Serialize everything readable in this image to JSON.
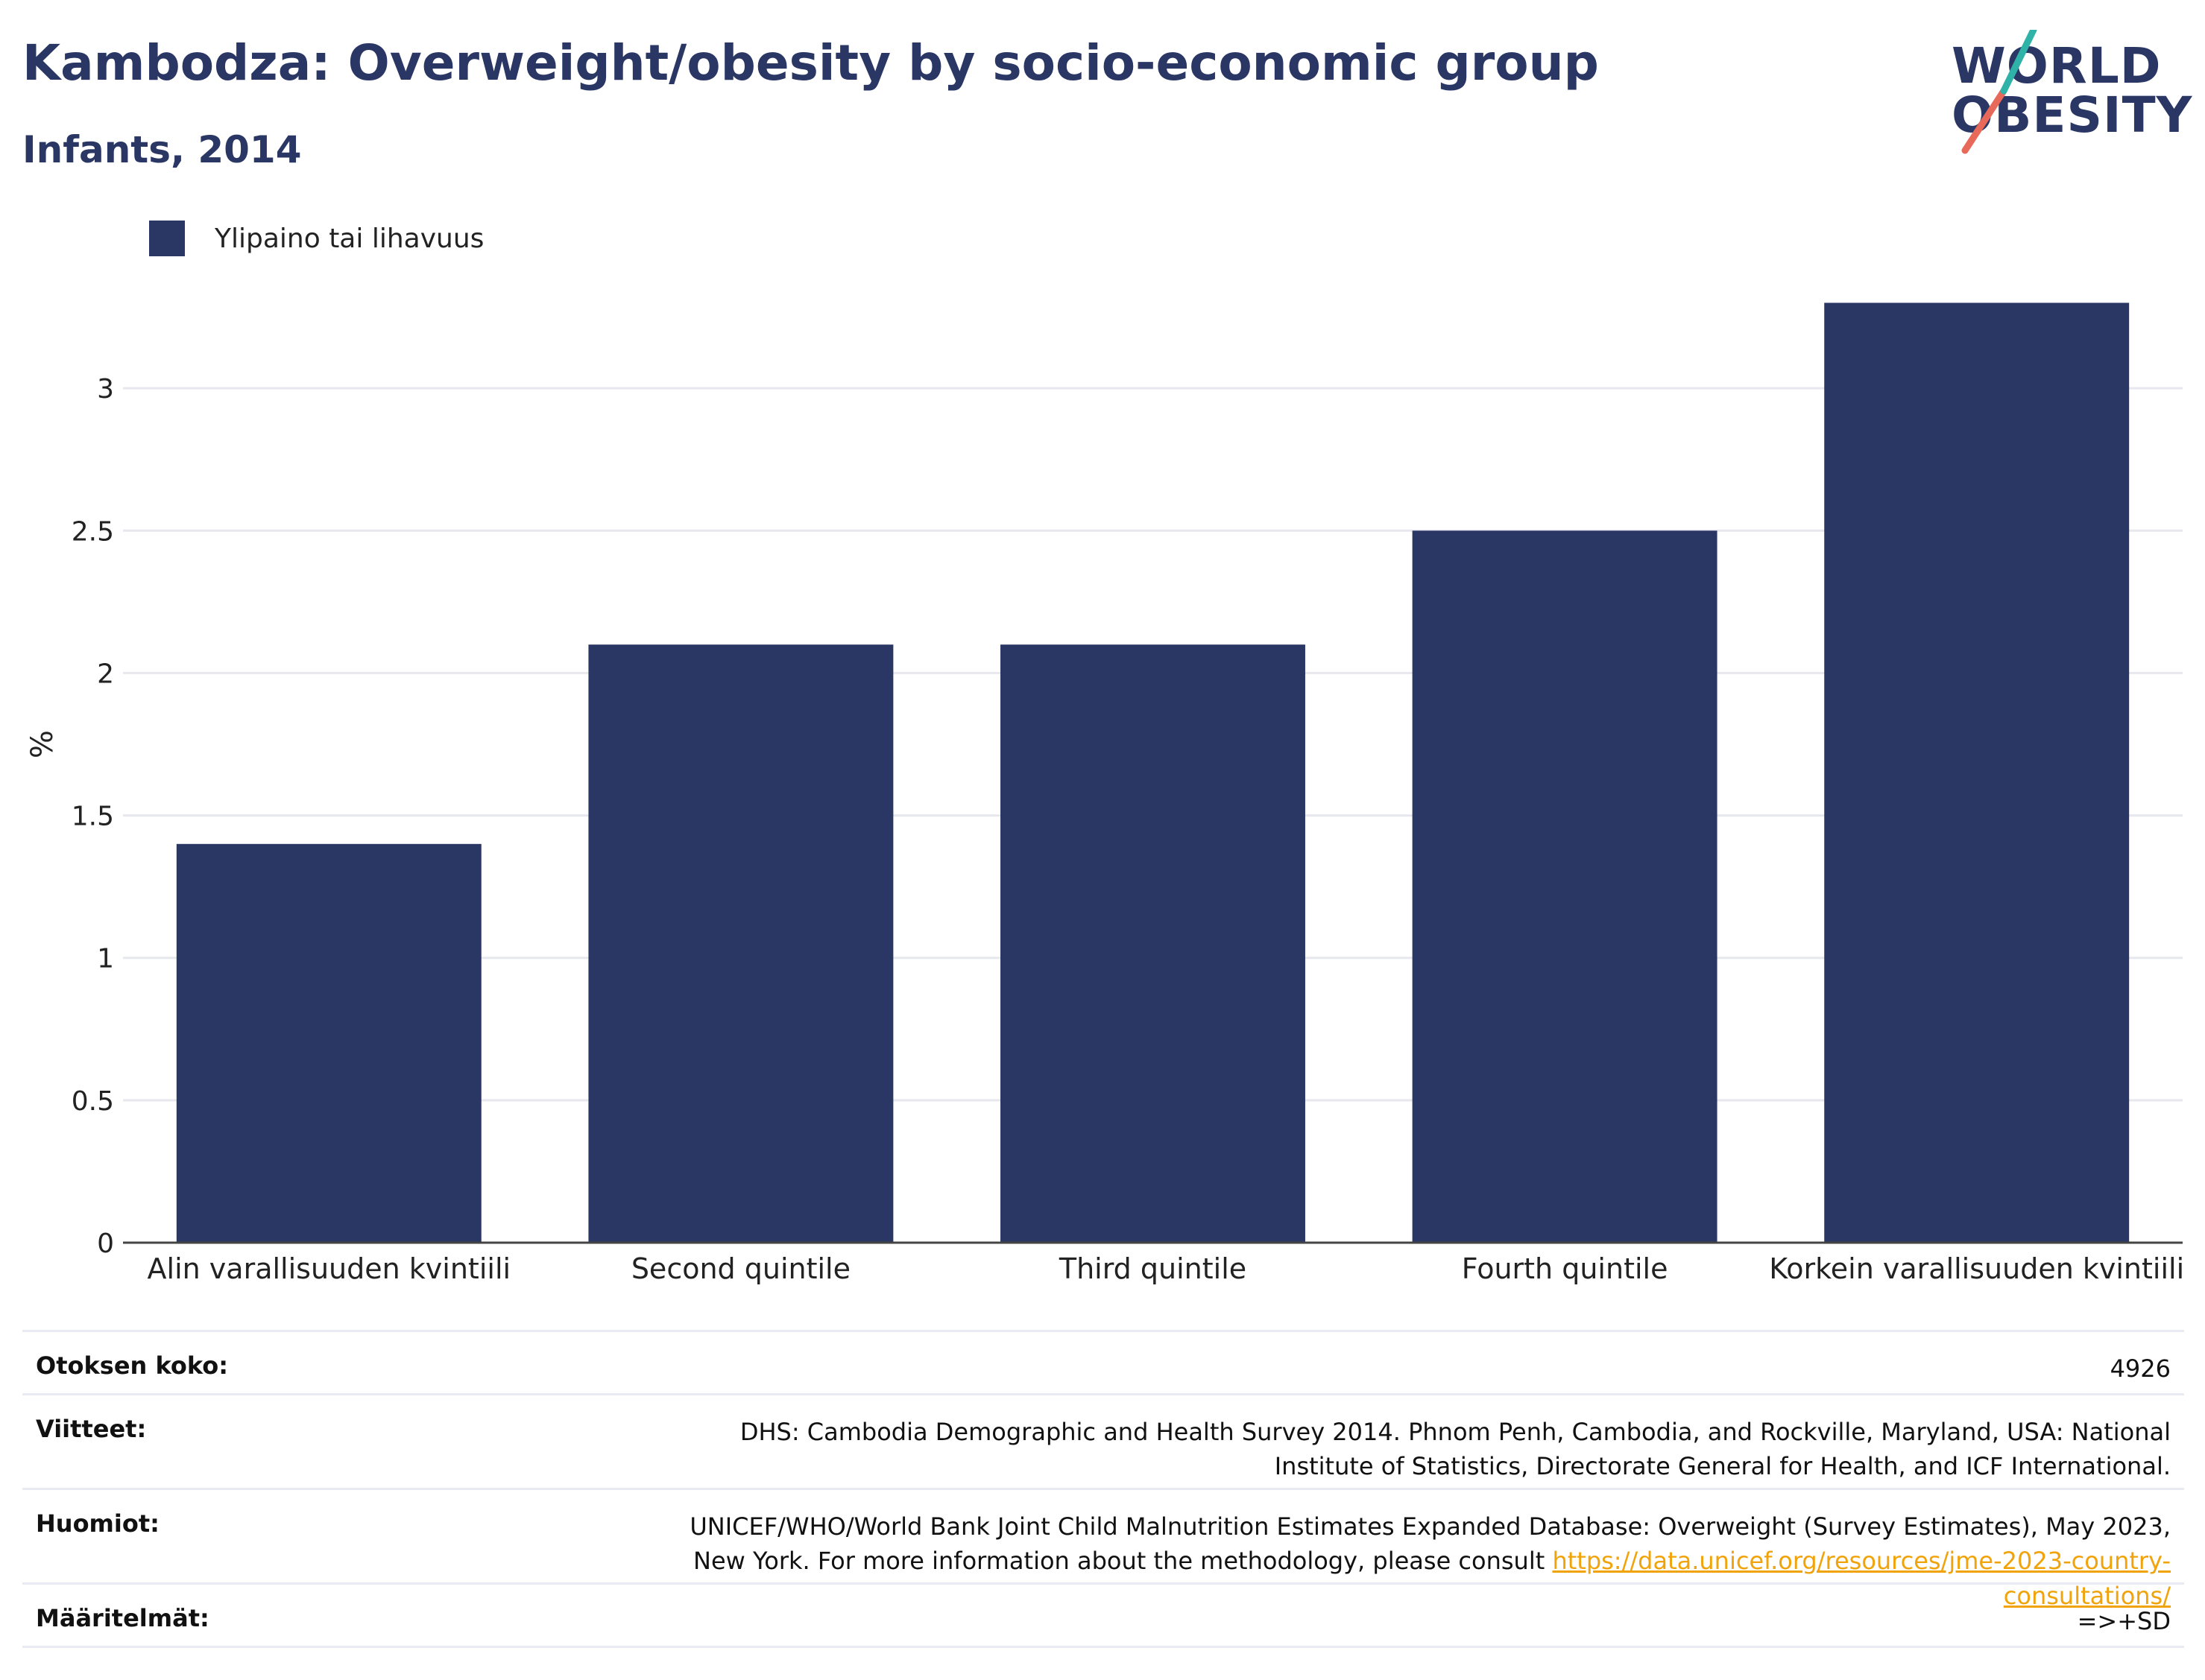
{
  "header": {
    "title": "Kambodza: Overweight/obesity by socio-economic group",
    "subtitle": "Infants, 2014"
  },
  "logo": {
    "line1": "WORLD",
    "line2": "OBESITY"
  },
  "colors": {
    "bar": "#2a3765",
    "accent_teal": "#2fb3a8",
    "accent_red": "#e8685a",
    "link": "#f0a30a"
  },
  "chart_data": {
    "type": "bar",
    "categories": [
      "Alin varallisuuden kvintiili",
      "Second quintile",
      "Third quintile",
      "Fourth quintile",
      "Korkein varallisuuden kvintiili"
    ],
    "series": [
      {
        "name": "Ylipaino tai lihavuus",
        "values": [
          1.4,
          2.1,
          2.1,
          2.5,
          3.3
        ]
      }
    ],
    "ylabel": "%",
    "yticks": [
      "0",
      "0.5",
      "1",
      "1.5",
      "2",
      "2.5",
      "3"
    ],
    "ylim": [
      0,
      3.5
    ],
    "grid": true,
    "legend": "top-left"
  },
  "footer": {
    "sample_label": "Otoksen koko:",
    "sample_value": "4926",
    "refs_label": "Viitteet:",
    "refs_value": "DHS: Cambodia Demographic and Health Survey 2014. Phnom Penh, Cambodia, and Rockville, Maryland, USA: National Institute of Statistics, Directorate General for Health, and ICF International.",
    "notes_label": "Huomiot:",
    "notes_value": "UNICEF/WHO/World Bank Joint Child Malnutrition Estimates Expanded Database: Overweight (Survey Estimates), May 2023, New York. For more information about the methodology, please consult ",
    "notes_link": "https://data.unicef.org/resources/jme-2023-country-consultations/",
    "defs_label": "Määritelmät:",
    "defs_value": "=>+SD"
  }
}
